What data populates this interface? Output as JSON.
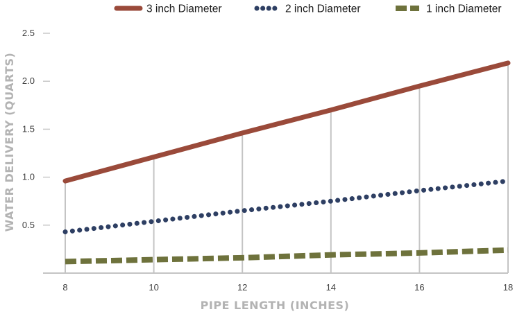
{
  "chart_data": {
    "type": "line",
    "xlabel": "PIPE LENGTH (INCHES)",
    "ylabel": "WATER DELIVERY (QUARTS)",
    "x_ticks": [
      "8",
      "10",
      "12",
      "14",
      "16",
      "18"
    ],
    "y_ticks": [
      "0.5",
      "1.0",
      "1.5",
      "2.0",
      "2.5"
    ],
    "xlim": [
      7.5,
      18
    ],
    "ylim": [
      0,
      2.5
    ],
    "grid": "vertical",
    "legend_position": "top",
    "series": [
      {
        "name": "3 inch Diameter",
        "color": "#9a4a3a",
        "style": "solid",
        "x": [
          8,
          10,
          12,
          14,
          16,
          18
        ],
        "values": [
          0.96,
          1.21,
          1.46,
          1.7,
          1.95,
          2.19
        ]
      },
      {
        "name": "2 inch Diameter",
        "color": "#2e3f63",
        "style": "dotted",
        "x": [
          8,
          10,
          12,
          14,
          16,
          18
        ],
        "values": [
          0.43,
          0.54,
          0.65,
          0.75,
          0.86,
          0.96
        ]
      },
      {
        "name": "1 inch Diameter",
        "color": "#6e723c",
        "style": "dashed",
        "x": [
          8,
          10,
          12,
          14,
          16,
          18
        ],
        "values": [
          0.12,
          0.14,
          0.16,
          0.19,
          0.21,
          0.24
        ]
      }
    ]
  }
}
